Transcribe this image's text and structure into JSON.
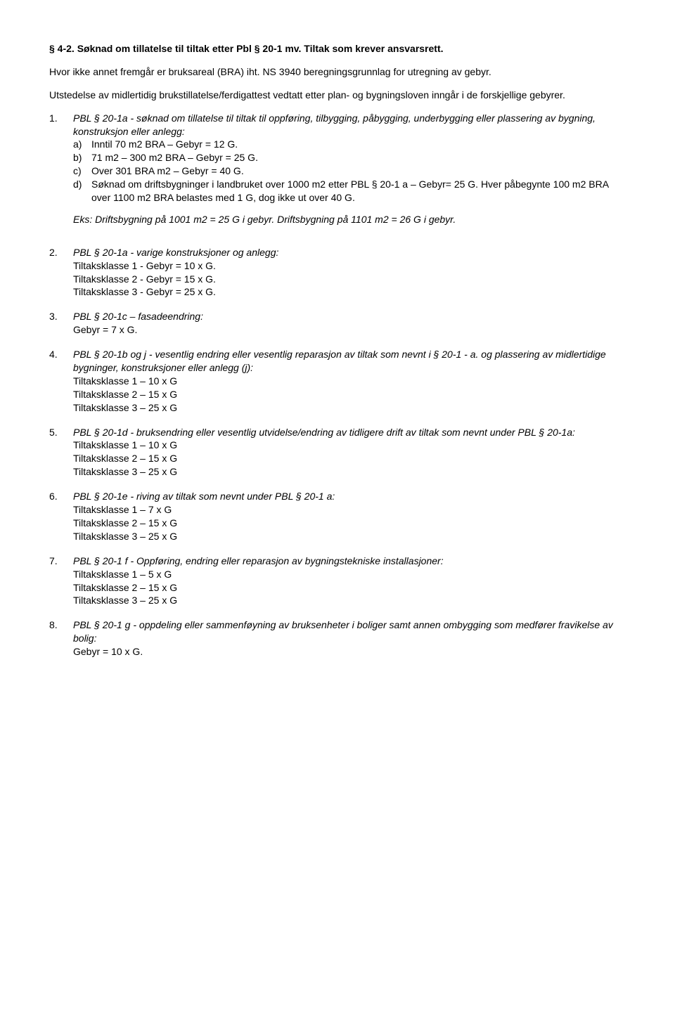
{
  "heading": "§ 4-2. Søknad om tillatelse til tiltak etter Pbl § 20-1 mv. Tiltak som krever ansvarsrett.",
  "intro1": "Hvor ikke annet fremgår er bruksareal (BRA) iht. NS 3940 beregningsgrunnlag for utregning av gebyr.",
  "intro2": "Utstedelse av midlertidig brukstillatelse/ferdigattest vedtatt etter plan- og bygningsloven inngår i de forskjellige gebyrer.",
  "item1": {
    "num": "1.",
    "lead": "PBL § 20-1a - søknad om tillatelse til tiltak til oppføring, tilbygging, påbygging, underbygging eller plassering av bygning, konstruksjon eller anlegg:",
    "a": {
      "l": "a)",
      "t": "Inntil 70 m2 BRA – Gebyr = 12 G."
    },
    "b": {
      "l": "b)",
      "t": "71 m2 – 300 m2 BRA – Gebyr = 25 G."
    },
    "c": {
      "l": "c)",
      "t": "Over 301 BRA m2 – Gebyr = 40 G."
    },
    "d": {
      "l": "d)",
      "t": "Søknad om driftsbygninger i landbruket over 1000 m2 etter PBL § 20-1 a – Gebyr= 25 G. Hver påbegynte 100 m2 BRA over 1100 m2 BRA belastes med 1 G, dog ikke ut over 40 G."
    },
    "eks": "Eks: Driftsbygning på 1001 m2 = 25 G i gebyr. Driftsbygning på 1101 m2 = 26 G i gebyr."
  },
  "item2": {
    "num": "2.",
    "lead": "PBL § 20-1a - varige konstruksjoner og anlegg:",
    "l1": "Tiltaksklasse 1 - Gebyr = 10 x G.",
    "l2": "Tiltaksklasse 2 - Gebyr = 15 x G.",
    "l3": "Tiltaksklasse 3 - Gebyr = 25 x G."
  },
  "item3": {
    "num": "3.",
    "lead": "PBL § 20-1c – fasadeendring:",
    "l1": "Gebyr = 7 x G."
  },
  "item4": {
    "num": "4.",
    "lead": "PBL § 20-1b og j - vesentlig endring eller vesentlig reparasjon av tiltak som nevnt i § 20-1 - a. og plassering av midlertidige bygninger, konstruksjoner eller anlegg (j):",
    "l1": "Tiltaksklasse 1 – 10 x G",
    "l2": "Tiltaksklasse 2 – 15 x G",
    "l3": "Tiltaksklasse 3 – 25 x G"
  },
  "item5": {
    "num": "5.",
    "lead": "PBL § 20-1d - bruksendring eller vesentlig utvidelse/endring av tidligere drift av tiltak som nevnt under PBL § 20-1a:",
    "l1": "Tiltaksklasse 1 – 10 x G",
    "l2": "Tiltaksklasse 2 – 15 x G",
    "l3": "Tiltaksklasse 3 – 25 x G"
  },
  "item6": {
    "num": "6.",
    "lead": "PBL § 20-1e - riving av tiltak som nevnt under PBL § 20-1 a:",
    "l1": "Tiltaksklasse 1 – 7 x G",
    "l2": "Tiltaksklasse 2 – 15 x G",
    "l3": "Tiltaksklasse 3 – 25 x G"
  },
  "item7": {
    "num": "7.",
    "lead": "PBL § 20-1 f - Oppføring, endring eller reparasjon av bygningstekniske installasjoner:",
    "l1": "Tiltaksklasse 1 – 5 x G",
    "l2": "Tiltaksklasse 2 – 15 x G",
    "l3": "Tiltaksklasse 3 – 25 x G"
  },
  "item8": {
    "num": "8.",
    "lead": "PBL § 20-1 g - oppdeling eller sammenføyning av bruksenheter i boliger samt annen ombygging som medfører fravikelse av bolig:",
    "l1": "Gebyr = 10 x G."
  }
}
